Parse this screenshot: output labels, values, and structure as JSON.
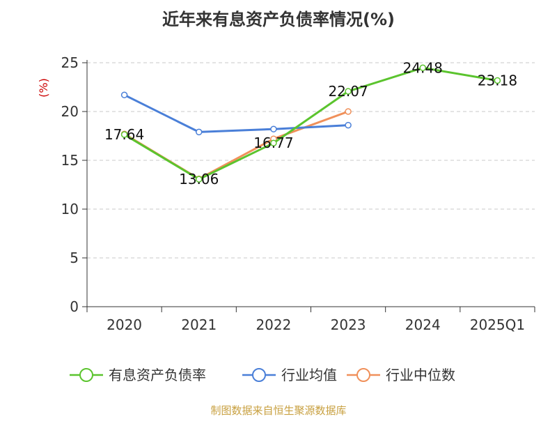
{
  "chart_data": {
    "type": "line",
    "title": "近年来有息资产负债率情况(%)",
    "ylabel": "(%)",
    "xlabel": "",
    "categories": [
      "2020",
      "2021",
      "2022",
      "2023",
      "2024",
      "2025Q1"
    ],
    "ylim": [
      0,
      25
    ],
    "yticks": [
      "0",
      "5",
      "10",
      "15",
      "20",
      "25"
    ],
    "grid": true,
    "legend_position": "bottom",
    "series": [
      {
        "name": "有息资产负债率",
        "color": "#5bc42e",
        "values": [
          17.64,
          13.06,
          16.77,
          22.07,
          24.48,
          23.18
        ],
        "labels": [
          "17.64",
          "13.06",
          "16.77",
          "22.07",
          "24.48",
          "23.18"
        ]
      },
      {
        "name": "行业均值",
        "color": "#4a7fd8",
        "values": [
          21.7,
          17.9,
          18.2,
          18.6,
          null,
          null
        ]
      },
      {
        "name": "行业中位数",
        "color": "#f0905a",
        "values": [
          17.7,
          13.1,
          17.2,
          20.0,
          null,
          null
        ]
      }
    ]
  },
  "source": "制图数据来自恒生聚源数据库"
}
